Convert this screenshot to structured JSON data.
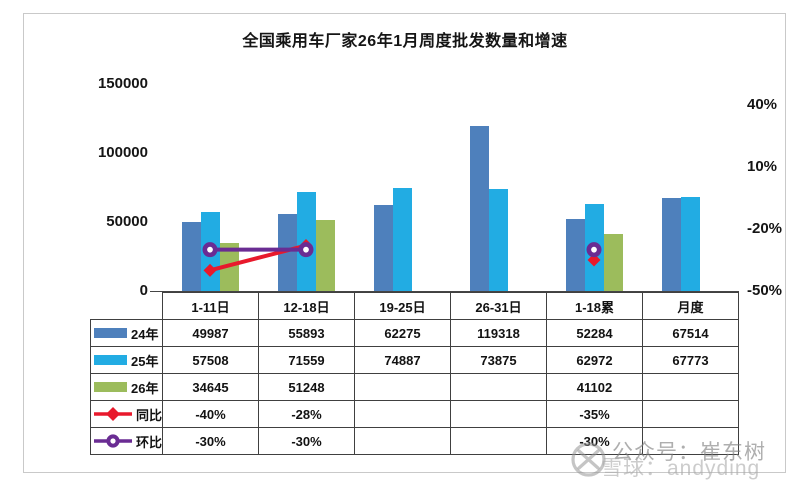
{
  "title": "全国乘用车厂家26年1月周度批发数量和增速",
  "watermark": {
    "line1": "公众号：崔东树",
    "line2": "雪球：andyding"
  },
  "colors": {
    "bar_24": "#4E80BC",
    "bar_25": "#22ACE3",
    "bar_26": "#9CBC5C",
    "line_yoy": "#E8192C",
    "line_mom": "#6A2C93",
    "table_border": "#404040",
    "frame_border": "#c9c9c9"
  },
  "chart_data": {
    "type": "bar",
    "title": "全国乘用车厂家26年1月周度批发数量和增速",
    "categories": [
      "1-11日",
      "12-18日",
      "19-25日",
      "26-31日",
      "1-18累",
      "月度"
    ],
    "bar_series": [
      {
        "name": "24年",
        "color": "#4E80BC",
        "values": [
          49987,
          55893,
          62275,
          119318,
          52284,
          67514
        ]
      },
      {
        "name": "25年",
        "color": "#22ACE3",
        "values": [
          57508,
          71559,
          74887,
          73875,
          62972,
          67773
        ]
      },
      {
        "name": "26年",
        "color": "#9CBC5C",
        "values": [
          34645,
          51248,
          null,
          null,
          41102,
          null
        ]
      }
    ],
    "line_series": [
      {
        "name": "同比",
        "color": "#E8192C",
        "marker": "diamond",
        "values": [
          -40,
          -28,
          null,
          null,
          -35,
          null
        ],
        "display": [
          "-40%",
          "-28%",
          "",
          "",
          "-35%",
          ""
        ]
      },
      {
        "name": "环比",
        "color": "#6A2C93",
        "marker": "circle",
        "values": [
          -30,
          -30,
          null,
          null,
          -30,
          null
        ],
        "display": [
          "-30%",
          "-30%",
          "",
          "",
          "-30%",
          ""
        ]
      }
    ],
    "left_axis": {
      "min": 0,
      "max": 150000,
      "ticks": [
        0,
        50000,
        100000,
        150000
      ],
      "labels": [
        "0",
        "50000",
        "100000",
        "150000"
      ]
    },
    "right_axis": {
      "min": -50,
      "max": 40,
      "ticks": [
        -50,
        -20,
        10,
        40
      ],
      "labels": [
        "-50%",
        "-20%",
        "10%",
        "40%"
      ]
    },
    "grid": false,
    "legend_position": "table-left-column"
  }
}
